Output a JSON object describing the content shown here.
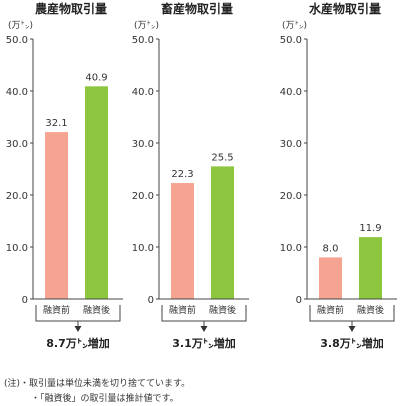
{
  "chart_data": [
    {
      "type": "bar",
      "title": "農産物取引量",
      "unit": "(万㌧)",
      "ylim": [
        0,
        50
      ],
      "yticks": [
        "50.0",
        "40.0",
        "30.0",
        "20.0",
        "10.0",
        "0"
      ],
      "categories": [
        "融資前",
        "融資後"
      ],
      "values": [
        32.1,
        40.9
      ],
      "value_labels": [
        "32.1",
        "40.9"
      ],
      "colors": [
        "#f4a491",
        "#8cc63f"
      ],
      "increase_label": "8.7万㌧増加"
    },
    {
      "type": "bar",
      "title": "畜産物取引量",
      "unit": "(万㌧)",
      "ylim": [
        0,
        50
      ],
      "yticks": [
        "50.0",
        "40.0",
        "30.0",
        "20.0",
        "10.0",
        "0"
      ],
      "categories": [
        "融資前",
        "融資後"
      ],
      "values": [
        22.3,
        25.5
      ],
      "value_labels": [
        "22.3",
        "25.5"
      ],
      "colors": [
        "#f4a491",
        "#8cc63f"
      ],
      "increase_label": "3.1万㌧増加"
    },
    {
      "type": "bar",
      "title": "水産物取引量",
      "unit": "(万㌧)",
      "ylim": [
        0,
        50
      ],
      "yticks": [
        "50.0",
        "40.0",
        "30.0",
        "20.0",
        "10.0",
        "0"
      ],
      "categories": [
        "融資前",
        "融資後"
      ],
      "values": [
        8.0,
        11.9
      ],
      "value_labels": [
        "8.0",
        "11.9"
      ],
      "colors": [
        "#f4a491",
        "#8cc63f"
      ],
      "increase_label": "3.8万㌧増加"
    }
  ],
  "notes": [
    "(注)・取引量は単位未満を切り捨てています。",
    "・「融資後」の取引量は推計値です。"
  ]
}
